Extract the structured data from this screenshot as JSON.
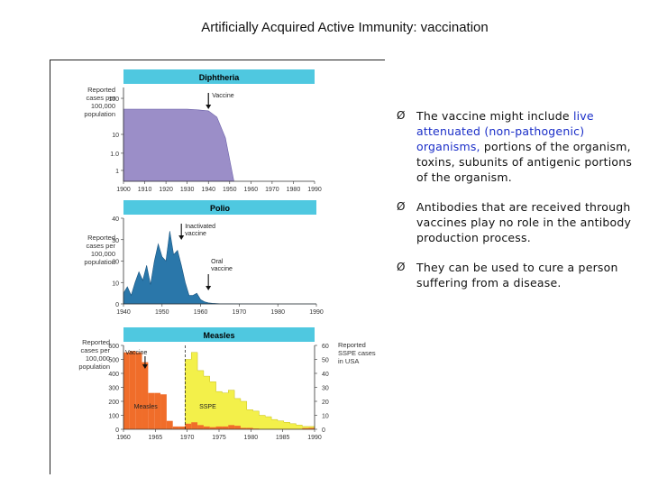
{
  "page": {
    "title": "Artificially Acquired Active Immunity: vaccination"
  },
  "colors": {
    "header_bar": "#4fc8e0",
    "diphtheria_fill": "#9b8ec8",
    "polio_fill": "#2a77aa",
    "measles_fill": "#f06d2a",
    "measles_overlay": "#f3f04a",
    "highlight_text": "#1a2ec8"
  },
  "bullets": [
    {
      "icon": "arrow-bullet-icon",
      "marker": "Ø",
      "pre": "The vaccine might include ",
      "highlight": "live attenuated (non-pathogenic) organisms,",
      "post": " portions of the organism, toxins, subunits of antigenic portions of the organism."
    },
    {
      "icon": "arrow-bullet-icon",
      "marker": "Ø",
      "text": "Antibodies that are received through vaccines play no role in the antibody production process."
    },
    {
      "icon": "arrow-bullet-icon",
      "marker": "Ø",
      "text": "They can be used to cure a person suffering from a disease."
    }
  ],
  "chart_data": [
    {
      "type": "area",
      "title": "Diphtheria",
      "ylabel": "Reported cases per 100,000 population",
      "y_scale": "log",
      "ylim": [
        1,
        100
      ],
      "yticks": [
        "100",
        "10",
        "1.0",
        "1"
      ],
      "xticks": [
        "1900",
        "1910",
        "1920",
        "1930",
        "1940",
        "1950",
        "1960",
        "1970",
        "1980",
        "1990"
      ],
      "annotations": [
        {
          "text": "Vaccine",
          "x": 1940
        }
      ],
      "x": [
        1900,
        1910,
        1920,
        1930,
        1935,
        1940,
        1944,
        1948,
        1950,
        1952
      ],
      "values": [
        50,
        50,
        50,
        50,
        48,
        45,
        30,
        8,
        2,
        0.5
      ]
    },
    {
      "type": "area",
      "title": "Polio",
      "ylabel": "Reported cases per 100,000 population",
      "ylim": [
        0,
        40
      ],
      "yticks": [
        "40",
        "30",
        "20",
        "10",
        "0"
      ],
      "xticks": [
        "1940",
        "1950",
        "1960",
        "1970",
        "1980",
        "1990"
      ],
      "annotations": [
        {
          "text": "Inactivated vaccine",
          "x": 1955
        },
        {
          "text": "Oral vaccine",
          "x": 1962
        }
      ],
      "x": [
        1940,
        1941,
        1942,
        1943,
        1944,
        1945,
        1946,
        1947,
        1948,
        1949,
        1950,
        1951,
        1952,
        1953,
        1954,
        1955,
        1956,
        1957,
        1958,
        1959,
        1960,
        1961,
        1962,
        1963,
        1965,
        1970,
        1980,
        1990
      ],
      "values": [
        5,
        8,
        4,
        10,
        15,
        11,
        18,
        9,
        20,
        28,
        22,
        20,
        34,
        23,
        25,
        18,
        10,
        4,
        4,
        5,
        2,
        1,
        0.5,
        0.3,
        0.1,
        0.05,
        0,
        0
      ]
    },
    {
      "type": "bar",
      "title": "Measles",
      "ylabel": "Reported cases per 100,000 population",
      "y2label": "Reported SSPE cases in USA",
      "ylim": [
        0,
        600
      ],
      "y2lim": [
        0,
        60
      ],
      "yticks": [
        "600",
        "500",
        "400",
        "300",
        "200",
        "100",
        "0"
      ],
      "y2ticks": [
        "60",
        "50",
        "40",
        "30",
        "20",
        "10",
        "0"
      ],
      "xticks": [
        "1960",
        "1965",
        "1970",
        "1975",
        "1980",
        "1985",
        "1990"
      ],
      "annotations": [
        {
          "text": "Vaccine",
          "x": 1963
        },
        {
          "text": "Measles",
          "x": 1962
        },
        {
          "text": "SSPE",
          "x": 1972
        }
      ],
      "series": [
        {
          "name": "Measles",
          "x": [
            1960,
            1961,
            1962,
            1963,
            1964,
            1965,
            1966,
            1967,
            1968,
            1969,
            1970,
            1971,
            1972,
            1973,
            1974,
            1975,
            1976,
            1977,
            1978,
            1979,
            1980,
            1981,
            1982,
            1983,
            1984,
            1985,
            1986,
            1987,
            1988,
            1989,
            1990
          ],
          "values": [
            550,
            560,
            550,
            480,
            260,
            260,
            250,
            60,
            20,
            20,
            40,
            50,
            30,
            20,
            15,
            20,
            20,
            30,
            25,
            10,
            10,
            5,
            2,
            2,
            2,
            2,
            3,
            2,
            2,
            8,
            10
          ]
        },
        {
          "name": "SSPE",
          "x": [
            1970,
            1971,
            1972,
            1973,
            1974,
            1975,
            1976,
            1977,
            1978,
            1979,
            1980,
            1981,
            1982,
            1983,
            1984,
            1985,
            1986,
            1987,
            1988,
            1989,
            1990
          ],
          "values": [
            50,
            55,
            42,
            38,
            34,
            27,
            26,
            28,
            22,
            20,
            14,
            13,
            10,
            9,
            7,
            6,
            5,
            4,
            3,
            2,
            2
          ]
        }
      ]
    }
  ]
}
